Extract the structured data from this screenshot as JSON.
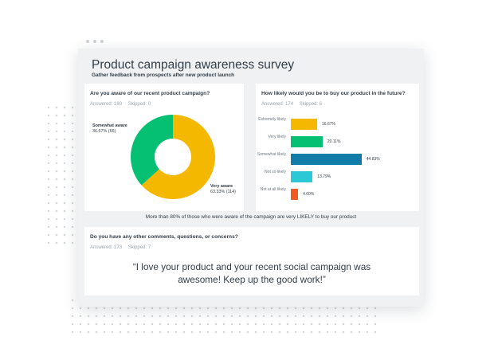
{
  "survey": {
    "title": "Product campaign awareness survey",
    "subtitle": "Gather feedback from prospects after new product launch",
    "insight": "More than 80% of those who were aware of the campaign are very LIKELY to buy our product"
  },
  "questions": {
    "awareness": {
      "title": "Are you aware of our recent product campaign?",
      "answered": "Answered: 180",
      "skipped": "Skipped: 0"
    },
    "likelihood": {
      "title": "How likely would you be to buy our product in the future?",
      "answered": "Answered: 174",
      "skipped": "Skipped: 6"
    },
    "comments": {
      "title": "Do you have any other comments, questions, or concerns?",
      "answered": "Answered: 173",
      "skipped": "Skipped: 7",
      "quote_line1": "“I love your product and your recent social campaign was",
      "quote_line2": "awesome! Keep up the good work!”"
    }
  },
  "chart_data": [
    {
      "type": "pie",
      "donut": true,
      "slices": [
        {
          "label": "Very aware",
          "value_label": "63.33% (114)",
          "percent": 63.33,
          "count": 114,
          "color": "#f5b800"
        },
        {
          "label": "Somewhat aware",
          "value_label": "36.67% (66)",
          "percent": 36.67,
          "count": 66,
          "color": "#05bf72"
        }
      ]
    },
    {
      "type": "bar",
      "orientation": "horizontal",
      "categories": [
        "Extremely likely",
        "Very likely",
        "Somewhat likely",
        "Not so likely",
        "Not at all likely"
      ],
      "values": [
        16.67,
        20.11,
        44.83,
        13.79,
        4.6
      ],
      "value_labels": [
        "16.67%",
        "20.11%",
        "44.83%",
        "13.79%",
        "4.60%"
      ],
      "colors": [
        "#f5b800",
        "#05bf72",
        "#127ca8",
        "#2dc8d6",
        "#f05b24"
      ],
      "xlim": [
        0,
        50
      ]
    }
  ]
}
